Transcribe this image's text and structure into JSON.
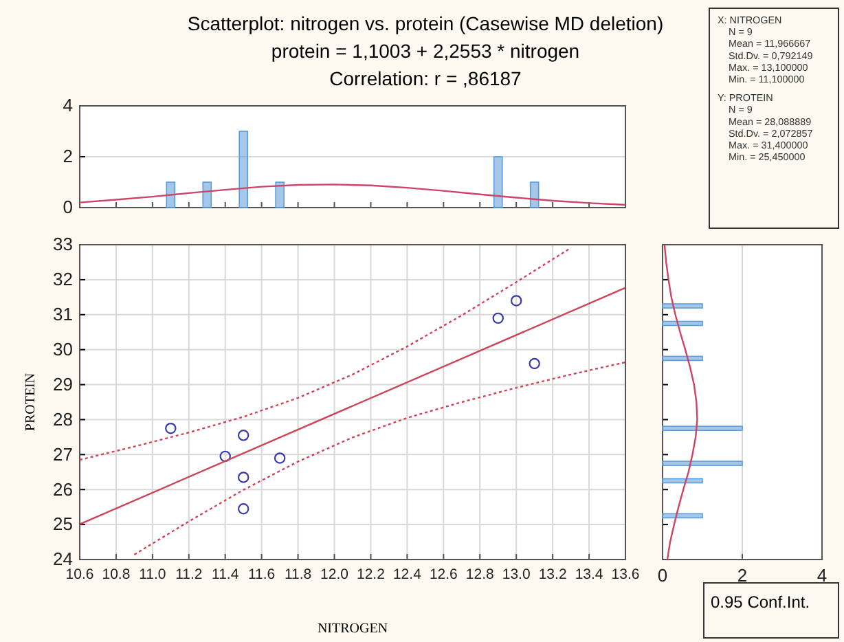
{
  "chart_data": [
    {
      "type": "scatter",
      "annotations": [
        "0.95 Conf.Int."
      ],
      "xlabel": "NITROGEN",
      "ylabel": "PROTEIN",
      "xlim": [
        10.6,
        13.6
      ],
      "xticks": [
        10.6,
        10.8,
        {
          "value": 11,
          "label": "11.0"
        },
        11.2,
        11.4,
        11.6,
        11.8,
        {
          "value": 12,
          "label": "12.0"
        },
        12.2,
        12.4,
        12.6,
        12.8,
        {
          "value": 13,
          "label": "13.0"
        },
        13.2,
        13.4,
        13.6
      ],
      "ylim": [
        24,
        33
      ],
      "yticks": [
        24,
        25,
        26,
        27,
        28,
        29,
        30,
        31,
        32,
        33
      ],
      "grid": true,
      "series": [
        {
          "type": "scatter",
          "marker": "circle",
          "color": "#3a3aa8",
          "x": [
            11.1,
            11.4,
            11.5,
            11.5,
            11.5,
            11.7,
            12.9,
            13.0,
            13.1
          ],
          "values": [
            27.75,
            26.95,
            27.55,
            26.35,
            25.45,
            26.9,
            30.9,
            31.4,
            29.6
          ]
        },
        {
          "type": "line",
          "color": "#cc4455",
          "line_style": "solid",
          "x": [
            10.6,
            13.6
          ],
          "values": [
            25.01,
            31.77
          ]
        },
        {
          "type": "line",
          "color": "#cc4455",
          "line_style": "dotted",
          "x": [
            10.6,
            10.9,
            11.2,
            11.5,
            11.8,
            12.1,
            12.4,
            12.7,
            13.0,
            13.3
          ],
          "values": [
            26.85,
            27.23,
            27.63,
            28.08,
            28.62,
            29.29,
            30.09,
            30.98,
            31.93,
            32.91
          ]
        },
        {
          "type": "line",
          "color": "#cc4455",
          "line_style": "dotted",
          "x": [
            10.9,
            11.2,
            11.5,
            11.8,
            12.1,
            12.4,
            12.7,
            13.0,
            13.3,
            13.6
          ],
          "values": [
            24.14,
            25.09,
            25.99,
            26.8,
            27.49,
            28.05,
            28.5,
            28.91,
            29.29,
            29.64
          ]
        }
      ]
    },
    {
      "type": "bar",
      "title": "Scatterplot: nitrogen vs. protein (Casewise MD deletion)",
      "subtitle": "protein = 1,1003 + 2,2553 * nitrogen",
      "annotations": [
        "Correlation: r = ,86187"
      ],
      "xlim": [
        10.6,
        13.6
      ],
      "xticks": [
        10.6,
        10.8,
        11,
        11.2,
        11.4,
        11.6,
        11.8,
        12,
        12.2,
        12.4,
        12.6,
        12.8,
        13,
        13.2,
        13.4,
        13.6
      ],
      "ylim": [
        0,
        4
      ],
      "yticks": [
        0,
        2,
        4
      ],
      "grid": "y",
      "tick_labels": "y",
      "series": [
        {
          "type": "bar",
          "color": "#5b9bd8",
          "x": [
            10.9,
            11.1,
            11.3,
            11.5,
            11.7,
            11.9,
            12.1,
            12.3,
            12.5,
            12.7,
            12.9,
            13.1,
            13.3
          ],
          "values": [
            0,
            1,
            1,
            3,
            1,
            0,
            0,
            0,
            0,
            0,
            2,
            1,
            0
          ]
        },
        {
          "type": "line",
          "color": "#cc4466",
          "x": [
            10.6,
            10.8,
            11.0,
            11.2,
            11.4,
            11.6,
            11.8,
            12.0,
            12.2,
            12.4,
            12.6,
            12.8,
            13.0,
            13.2,
            13.4,
            13.6
          ],
          "values": [
            0.2,
            0.31,
            0.43,
            0.57,
            0.7,
            0.82,
            0.89,
            0.91,
            0.87,
            0.78,
            0.66,
            0.52,
            0.39,
            0.27,
            0.18,
            0.11
          ]
        }
      ]
    },
    {
      "type": "bar",
      "orientation": "horizontal",
      "xlim": [
        0,
        4
      ],
      "xticks": [
        0,
        2,
        4
      ],
      "ylim": [
        24,
        33
      ],
      "yticks": [
        24,
        25,
        26,
        27,
        28,
        29,
        30,
        31,
        32,
        33
      ],
      "grid": "x",
      "tick_labels": "x",
      "series": [
        {
          "type": "bar",
          "color": "#5b9bd8",
          "x": [
            25.25,
            26.25,
            26.75,
            27.75,
            29.75,
            30.75,
            31.25
          ],
          "values": [
            1,
            1,
            2,
            2,
            1,
            1,
            1
          ]
        },
        {
          "type": "line",
          "color": "#cc4466",
          "x": [
            24,
            24.5,
            25,
            25.5,
            26,
            26.5,
            27,
            27.5,
            28,
            28.5,
            29,
            29.5,
            30,
            30.5,
            31,
            31.5,
            32,
            32.5,
            33
          ],
          "values": [
            0.12,
            0.19,
            0.29,
            0.4,
            0.52,
            0.65,
            0.75,
            0.83,
            0.87,
            0.85,
            0.79,
            0.69,
            0.57,
            0.44,
            0.32,
            0.22,
            0.15,
            0.09,
            0.05
          ]
        }
      ]
    },
    {
      "type": "other",
      "annotations": [
        "X:  NITROGEN",
        "N = 9",
        "Mean = 11,966667",
        "Std.Dv. = 0,792149",
        "Max. = 13,100000",
        "Min. = 11,100000",
        "Y:  PROTEIN",
        "N = 9",
        "Mean = 28,088889",
        "Std.Dv. = 2,072857",
        "Max. = 31,400000",
        "Min. = 25,450000"
      ]
    }
  ]
}
